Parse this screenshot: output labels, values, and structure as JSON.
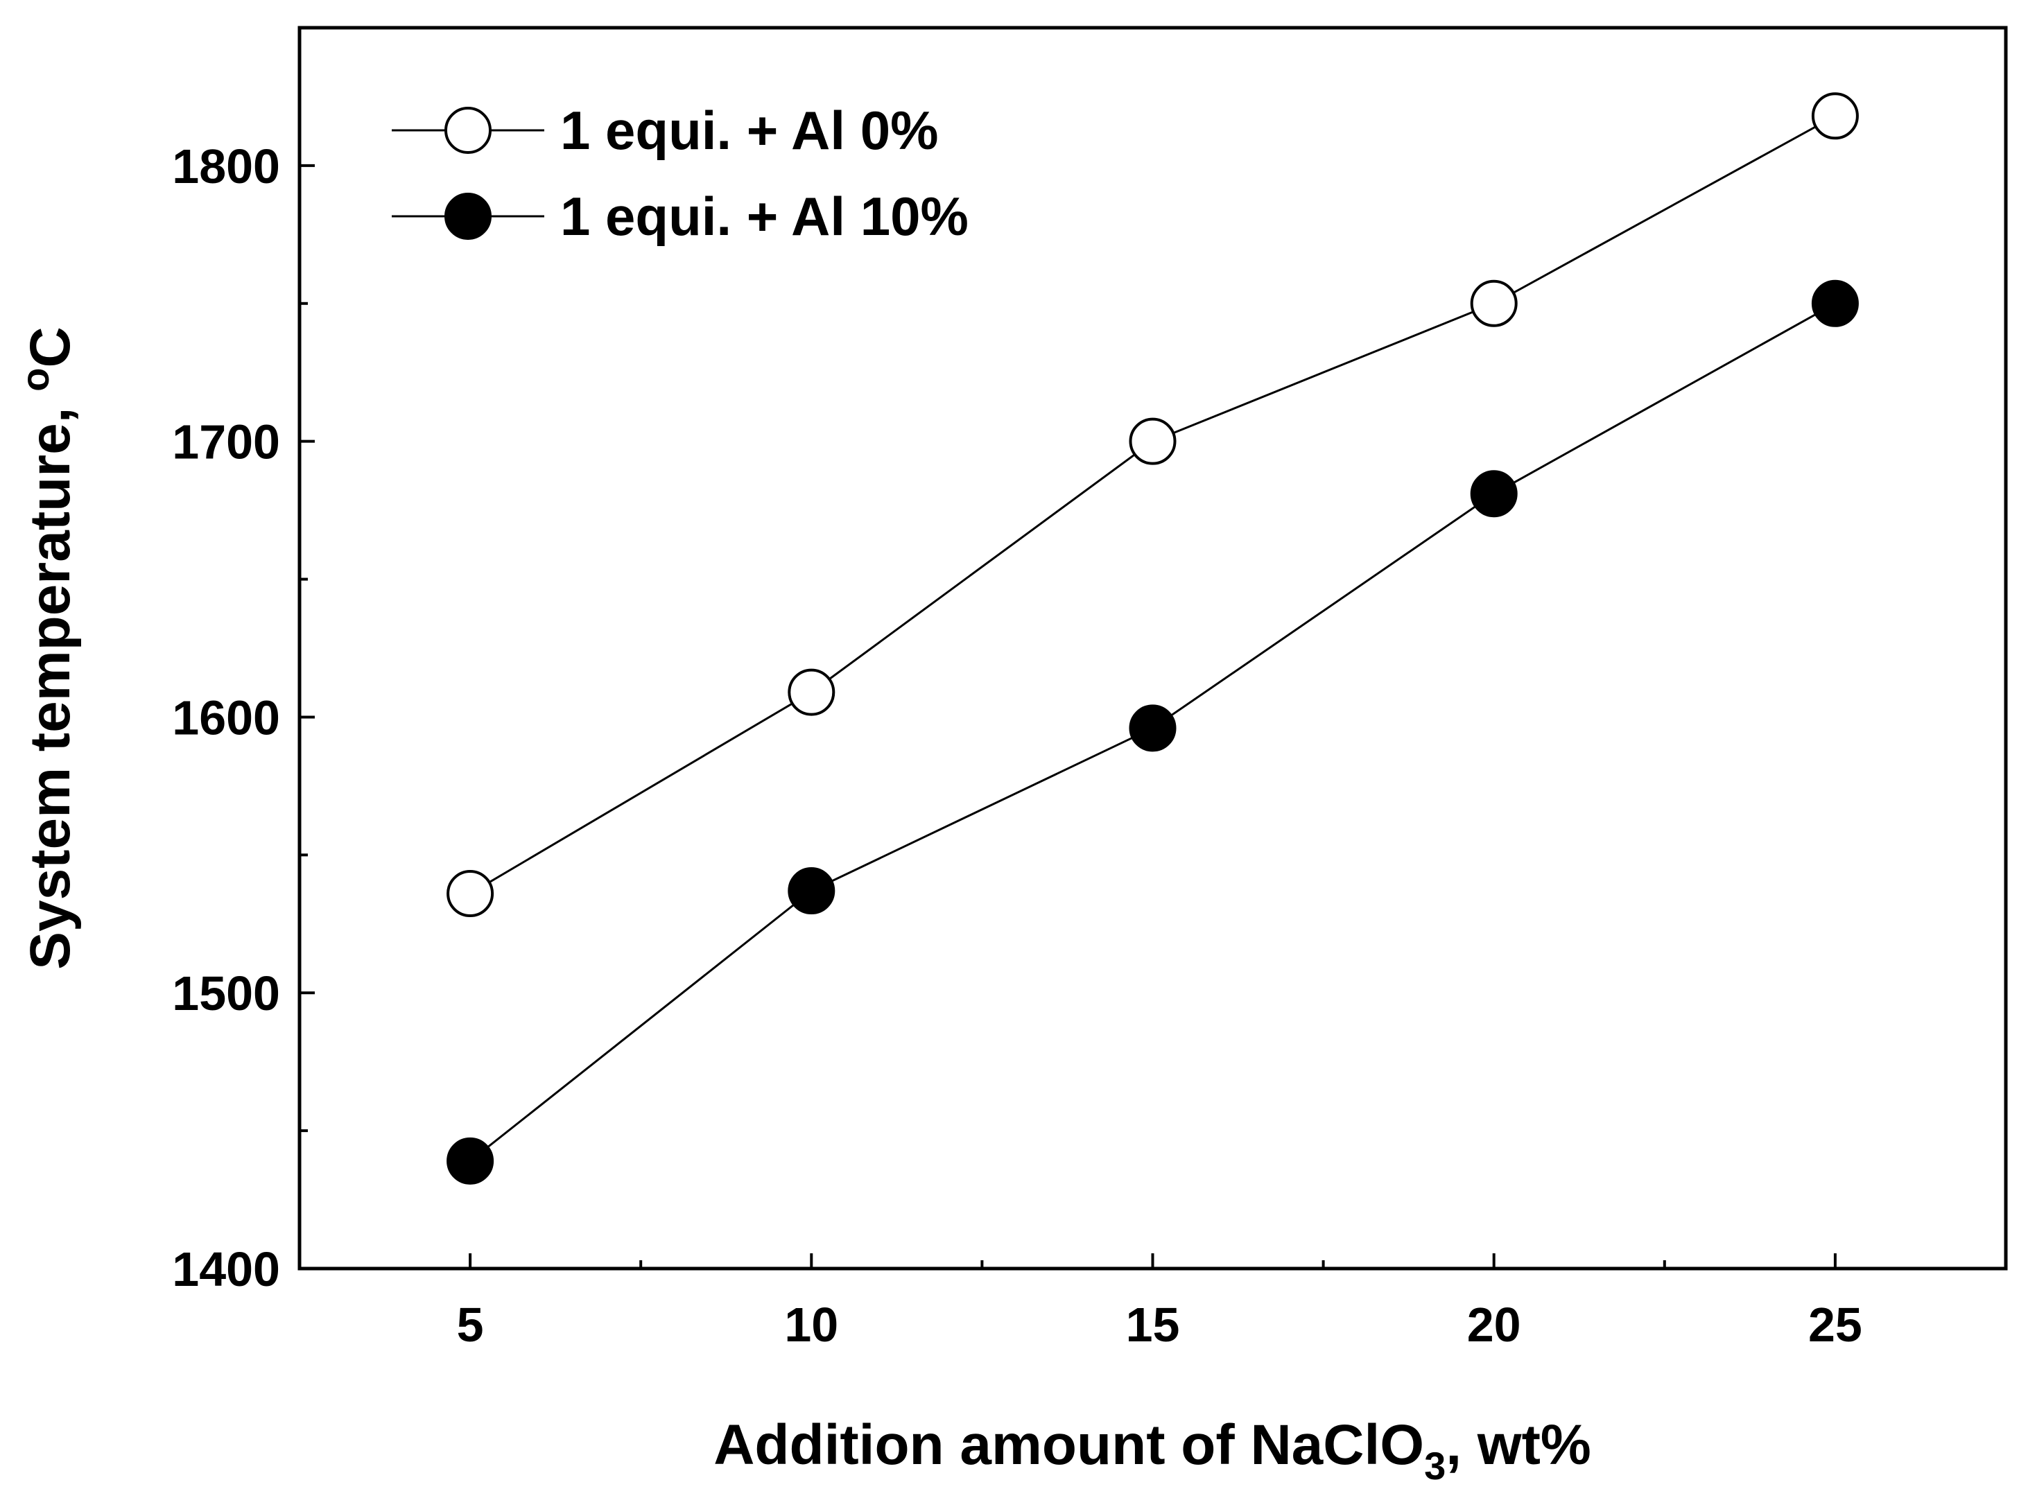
{
  "chart_data": {
    "type": "line",
    "title": "",
    "xlabel_main": "Addition amount of NaClO",
    "xlabel_sub": "3",
    "xlabel_tail": ", wt%",
    "ylabel_main": "System temperature, ",
    "ylabel_deg": "o",
    "ylabel_unit": "C",
    "xlim": [
      2.5,
      27.5
    ],
    "ylim": [
      1400,
      1850
    ],
    "x_ticks": [
      5,
      10,
      15,
      20,
      25
    ],
    "x_tick_labels": [
      "5",
      "10",
      "15",
      "20",
      "25"
    ],
    "y_ticks": [
      1400,
      1500,
      1600,
      1700,
      1800
    ],
    "y_tick_labels": [
      "1400",
      "1500",
      "1600",
      "1700",
      "1800"
    ],
    "x_minor_ticks": [
      7.5,
      12.5,
      17.5,
      22.5
    ],
    "y_minor_ticks": [
      1450,
      1550,
      1650,
      1750
    ],
    "legend_position": "top-left",
    "series": [
      {
        "name": "1 equi. + Al 0%",
        "marker": "open-circle",
        "x": [
          5,
          10,
          15,
          20,
          25
        ],
        "values": [
          1536,
          1609,
          1700,
          1750,
          1818
        ]
      },
      {
        "name": "1 equi. + Al 10%",
        "marker": "filled-circle",
        "x": [
          5,
          10,
          15,
          20,
          25
        ],
        "values": [
          1439,
          1537,
          1596,
          1681,
          1750
        ]
      }
    ]
  }
}
